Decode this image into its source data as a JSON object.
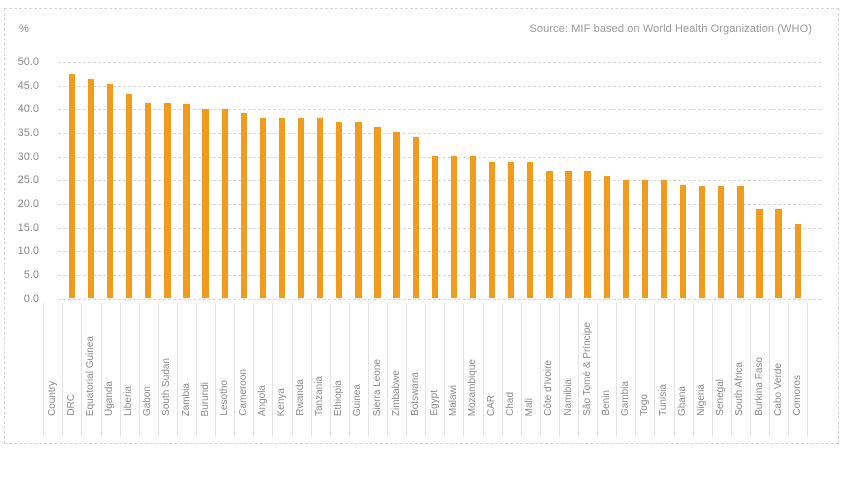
{
  "chart_data": {
    "type": "bar",
    "ylabel": "%",
    "source": "Source: MIF based on World Health Organization (WHO)",
    "x_header": "Country",
    "categories": [
      "DRC",
      "Equatorial Guinea",
      "Uganda",
      "Liberia",
      "Gabon",
      "South Sudan",
      "Zambia",
      "Burundi",
      "Lesotho",
      "Cameroon",
      "Angola",
      "Kenya",
      "Rwanda",
      "Tanzania",
      "Ethiopia",
      "Guinea",
      "Sierra Leone",
      "Zimbabwe",
      "Botswana",
      "Egypt",
      "Malawi",
      "Mozambique",
      "CAR",
      "Chad",
      "Mali",
      "Côte d'Ivoire",
      "Namibia",
      "São Tomé & Príncipe",
      "Benin",
      "Gambia",
      "Togo",
      "Tunisia",
      "Ghana",
      "Nigeria",
      "Senegal",
      "South Africa",
      "Burkina Faso",
      "Cabo Verde",
      "Comoros"
    ],
    "values": [
      47.3,
      46.4,
      45.2,
      43.2,
      41.2,
      41.2,
      41.1,
      40.1,
      40.0,
      39.1,
      38.1,
      38.1,
      38.1,
      38.1,
      37.2,
      37.2,
      36.1,
      35.1,
      34.1,
      30.0,
      30.0,
      30.0,
      28.9,
      28.9,
      28.9,
      26.9,
      26.9,
      26.8,
      25.9,
      25.0,
      25.0,
      24.9,
      23.9,
      23.8,
      23.8,
      23.8,
      18.8,
      18.8,
      15.8
    ],
    "ylim": [
      0,
      50
    ],
    "y_tick_step": 5,
    "y_ticks": [
      "0.0",
      "5.0",
      "10.0",
      "15.0",
      "20.0",
      "25.0",
      "30.0",
      "35.0",
      "40.0",
      "45.0",
      "50.0"
    ],
    "grid": "horizontal-dashed",
    "legend": "none",
    "bar_color": "#F29B1D"
  }
}
